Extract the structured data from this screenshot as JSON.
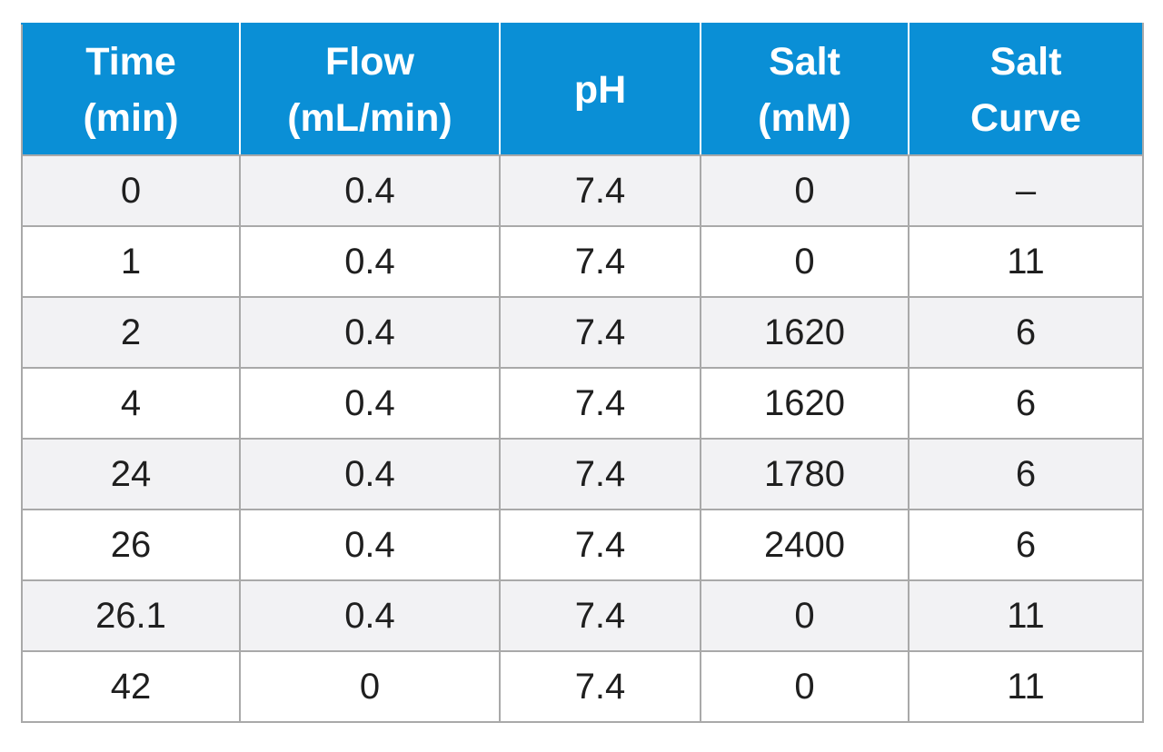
{
  "header": {
    "columns": [
      [
        "Time",
        "(min)"
      ],
      [
        "Flow",
        "(mL/min)"
      ],
      [
        "pH"
      ],
      [
        "Salt",
        "(mM)"
      ],
      [
        "Salt",
        "Curve"
      ]
    ]
  },
  "rows": [
    [
      "0",
      "0.4",
      "7.4",
      "0",
      "–"
    ],
    [
      "1",
      "0.4",
      "7.4",
      "0",
      "11"
    ],
    [
      "2",
      "0.4",
      "7.4",
      "1620",
      "6"
    ],
    [
      "4",
      "0.4",
      "7.4",
      "1620",
      "6"
    ],
    [
      "24",
      "0.4",
      "7.4",
      "1780",
      "6"
    ],
    [
      "26",
      "0.4",
      "7.4",
      "2400",
      "6"
    ],
    [
      "26.1",
      "0.4",
      "7.4",
      "0",
      "11"
    ],
    [
      "42",
      "0",
      "7.4",
      "0",
      "11"
    ]
  ],
  "colors": {
    "header_bg": "#0a8fd6",
    "header_text": "#ffffff",
    "row_alt_bg": "#f2f2f4",
    "grid_lines": "#a9a9a9"
  }
}
